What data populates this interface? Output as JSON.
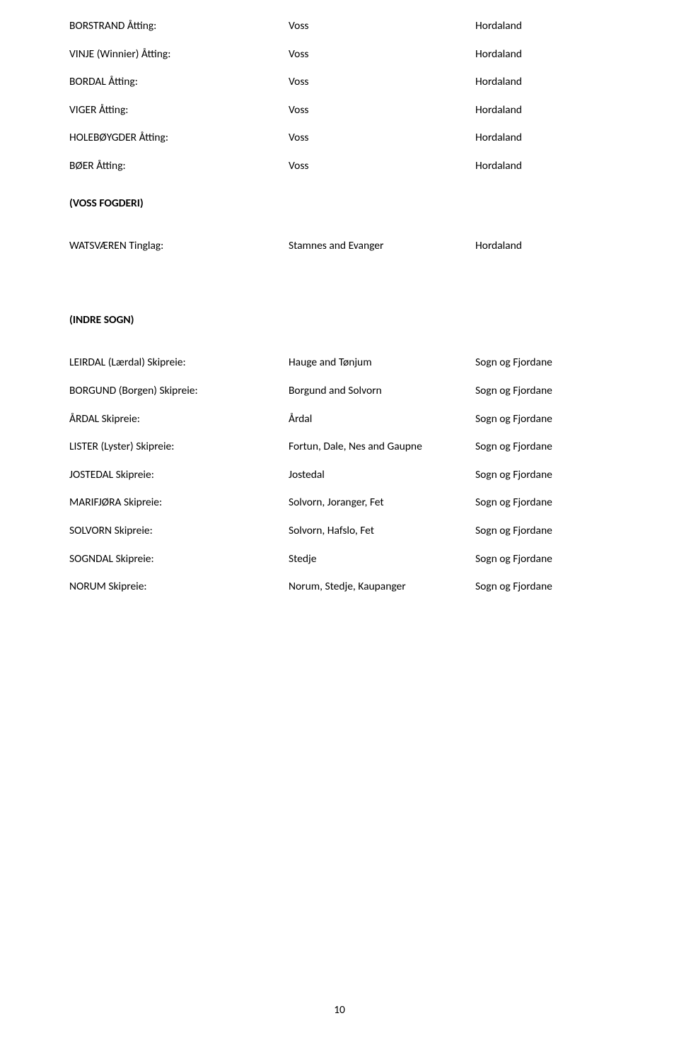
{
  "rows_top": [
    {
      "c1": "BORSTRAND Åtting:",
      "c2": "Voss",
      "c3": "Hordaland"
    },
    {
      "c1": "VINJE  (Winnier) Åtting:",
      "c2": "Voss",
      "c3": "Hordaland"
    },
    {
      "c1": "BORDAL Åtting:",
      "c2": "Voss",
      "c3": "Hordaland"
    },
    {
      "c1": "VIGER Åtting:",
      "c2": "Voss",
      "c3": "Hordaland"
    },
    {
      "c1": "HOLEBØYGDER Åtting:",
      "c2": "Voss",
      "c3": "Hordaland"
    },
    {
      "c1": "BØER Åtting:",
      "c2": "Voss",
      "c3": "Hordaland"
    }
  ],
  "section1_heading": "(VOSS FOGDERI)",
  "rows_mid": [
    {
      "c1": "WATSVÆREN Tinglag:",
      "c2": "Stamnes and Evanger",
      "c3": "Hordaland"
    }
  ],
  "section2_heading": "(INDRE SOGN)",
  "rows_bot": [
    {
      "c1": "LEIRDAL (Lærdal) Skipreie:",
      "c2": "Hauge and Tønjum",
      "c3": "Sogn og Fjordane"
    },
    {
      "c1": "BORGUND (Borgen) Skipreie:",
      "c2": "Borgund and Solvorn",
      "c3": "Sogn og Fjordane"
    },
    {
      "c1": "ÅRDAL Skipreie:",
      "c2": "Årdal",
      "c3": "Sogn og Fjordane"
    },
    {
      "c1": "LISTER (Lyster) Skipreie:",
      "c2": "Fortun, Dale, Nes and Gaupne",
      "c3": "Sogn og Fjordane"
    },
    {
      "c1": "JOSTEDAL Skipreie:",
      "c2": "Jostedal",
      "c3": "Sogn og Fjordane"
    },
    {
      "c1": "MARIFJØRA Skipreie:",
      "c2": "Solvorn, Joranger, Fet",
      "c3": "Sogn og Fjordane"
    },
    {
      "c1": "SOLVORN Skipreie:",
      "c2": "Solvorn, Hafslo, Fet",
      "c3": "Sogn og Fjordane"
    },
    {
      "c1": "SOGNDAL  Skipreie:",
      "c2": "Stedje",
      "c3": "Sogn og Fjordane"
    },
    {
      "c1": "NORUM Skipreie:",
      "c2": "Norum, Stedje, Kaupanger",
      "c3": "Sogn og Fjordane"
    }
  ],
  "page_number": "10"
}
